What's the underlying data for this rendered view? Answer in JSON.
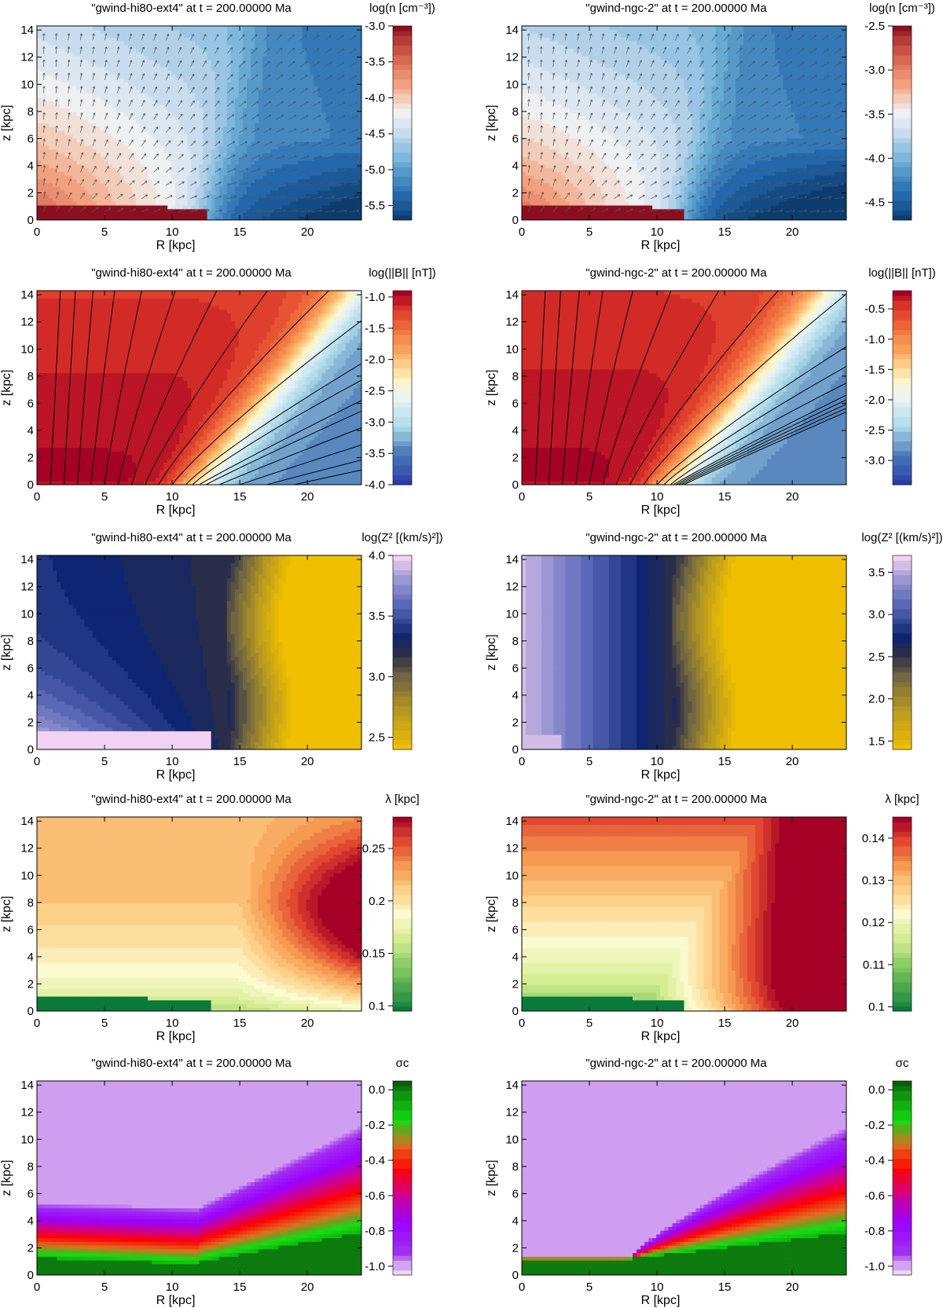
{
  "figure": {
    "description": "Grid of 10 contour plots of galactic wind simulations in the R-z plane (5 quantities x 2 models)",
    "xlabel": "R [kpc]",
    "ylabel": "z [kpc]"
  },
  "chart_data": [
    {
      "type": "heatmap",
      "row": 0,
      "col": 0,
      "title": "\"gwind-hi80-ext4\" at t = 200.00000 Ma",
      "xlabel": "R [kpc]",
      "ylabel": "z [kpc]",
      "xlim": [
        0,
        24
      ],
      "ylim": [
        0,
        14.3
      ],
      "xticks": [
        0,
        5,
        10,
        15,
        20
      ],
      "yticks": [
        0,
        2,
        4,
        6,
        8,
        10,
        12,
        14
      ],
      "colorbar": {
        "title": "log(n [cm⁻³])",
        "min": -5.7,
        "max": -3.0,
        "ticks": [
          -3.0,
          -3.5,
          -4.0,
          -4.5,
          -5.0,
          -5.5
        ],
        "palette": "red-white-blue"
      },
      "field": {
        "kind": "density",
        "hi": -3.0,
        "lo": -5.7,
        "mid_ratio": 0.62,
        "r0": 12.5,
        "levels": 24
      },
      "overlay": {
        "kind": "velocity-arrows",
        "count_x": 26,
        "count_z": 14
      }
    },
    {
      "type": "heatmap",
      "row": 0,
      "col": 1,
      "title": "\"gwind-ngc-2\" at t = 200.00000 Ma",
      "xlabel": "R [kpc]",
      "ylabel": "z [kpc]",
      "xlim": [
        0,
        24
      ],
      "ylim": [
        0,
        14.3
      ],
      "xticks": [
        0,
        5,
        10,
        15,
        20
      ],
      "yticks": [
        0,
        2,
        4,
        6,
        8,
        10,
        12,
        14
      ],
      "colorbar": {
        "title": "log(n [cm⁻³])",
        "min": -4.7,
        "max": -2.5,
        "ticks": [
          -2.5,
          -3.0,
          -3.5,
          -4.0,
          -4.5
        ],
        "palette": "red-white-blue"
      },
      "field": {
        "kind": "density",
        "hi": -2.5,
        "lo": -4.7,
        "mid_ratio": 0.5,
        "r0": 12.0,
        "levels": 24
      },
      "overlay": {
        "kind": "velocity-arrows",
        "count_x": 26,
        "count_z": 14
      }
    },
    {
      "type": "heatmap",
      "row": 1,
      "col": 0,
      "title": "\"gwind-hi80-ext4\" at t = 200.00000 Ma",
      "xlabel": "R [kpc]",
      "ylabel": "z [kpc]",
      "xlim": [
        0,
        24
      ],
      "ylim": [
        0,
        14.3
      ],
      "xticks": [
        0,
        5,
        10,
        15,
        20
      ],
      "yticks": [
        0,
        2,
        4,
        6,
        8,
        10,
        12,
        14
      ],
      "colorbar": {
        "title": "log(||B|| [nT])",
        "min": -4.0,
        "max": -0.9,
        "ticks": [
          -1.0,
          -1.5,
          -2.0,
          -2.5,
          -3.0,
          -3.5,
          -4.0
        ],
        "palette": "red-yellow-blue"
      },
      "field": {
        "kind": "bfield",
        "r0": 12.0,
        "levels": 28
      },
      "overlay": {
        "kind": "field-lines",
        "footpoints": [
          1,
          2,
          3,
          4,
          5,
          6,
          7,
          8,
          9,
          10,
          11,
          11.5,
          12,
          12.5,
          13.5,
          15,
          17,
          19
        ]
      }
    },
    {
      "type": "heatmap",
      "row": 1,
      "col": 1,
      "title": "\"gwind-ngc-2\" at t = 200.00000 Ma",
      "xlabel": "R [kpc]",
      "ylabel": "z [kpc]",
      "xlim": [
        0,
        24
      ],
      "ylim": [
        0,
        14.3
      ],
      "xticks": [
        0,
        5,
        10,
        15,
        20
      ],
      "yticks": [
        0,
        2,
        4,
        6,
        8,
        10,
        12,
        14
      ],
      "colorbar": {
        "title": "log(||B|| [nT])",
        "min": -3.4,
        "max": -0.2,
        "ticks": [
          -0.5,
          -1.0,
          -1.5,
          -2.0,
          -2.5,
          -3.0
        ],
        "palette": "red-yellow-blue"
      },
      "field": {
        "kind": "bfield",
        "r0": 11.2,
        "levels": 28
      },
      "overlay": {
        "kind": "field-lines",
        "footpoints": [
          1,
          2,
          3,
          4,
          5,
          6,
          7,
          8,
          9,
          10,
          10.5,
          11,
          11.2,
          11.4,
          11.6,
          11.8,
          12
        ]
      }
    },
    {
      "type": "heatmap",
      "row": 2,
      "col": 0,
      "title": "\"gwind-hi80-ext4\" at t = 200.00000 Ma",
      "xlabel": "R [kpc]",
      "ylabel": "z [kpc]",
      "xlim": [
        0,
        24
      ],
      "ylim": [
        0,
        14.3
      ],
      "xticks": [
        0,
        5,
        10,
        15,
        20
      ],
      "yticks": [
        0,
        2,
        4,
        6,
        8,
        10,
        12,
        14
      ],
      "colorbar": {
        "title": "log(Z² [(km/s)²])",
        "min": 2.4,
        "max": 4.0,
        "ticks": [
          4.0,
          3.5,
          3.0,
          2.5
        ],
        "palette": "purple-blue-yellow"
      },
      "field": {
        "kind": "z2",
        "r0": 14.0,
        "core_hi": true,
        "levels": 24
      }
    },
    {
      "type": "heatmap",
      "row": 2,
      "col": 1,
      "title": "\"gwind-ngc-2\" at t = 200.00000 Ma",
      "xlabel": "R [kpc]",
      "ylabel": "z [kpc]",
      "xlim": [
        0,
        24
      ],
      "ylim": [
        0,
        14.3
      ],
      "xticks": [
        0,
        5,
        10,
        15,
        20
      ],
      "yticks": [
        0,
        2,
        4,
        6,
        8,
        10,
        12,
        14
      ],
      "colorbar": {
        "title": "log(Z² [(km/s)²])",
        "min": 1.4,
        "max": 3.7,
        "ticks": [
          3.5,
          3.0,
          2.5,
          2.0,
          1.5
        ],
        "palette": "purple-blue-yellow"
      },
      "field": {
        "kind": "z2",
        "r0": 11.0,
        "core_hi": false,
        "levels": 24
      }
    },
    {
      "type": "heatmap",
      "row": 3,
      "col": 0,
      "title": "\"gwind-hi80-ext4\" at t = 200.00000 Ma",
      "xlabel": "R [kpc]",
      "ylabel": "z [kpc]",
      "xlim": [
        0,
        24
      ],
      "ylim": [
        0,
        14.3
      ],
      "xticks": [
        0,
        5,
        10,
        15,
        20
      ],
      "yticks": [
        0,
        2,
        4,
        6,
        8,
        10,
        12,
        14
      ],
      "colorbar": {
        "title": "λ [kpc]",
        "min": 0.095,
        "max": 0.28,
        "ticks": [
          0.25,
          0.2,
          0.15,
          0.1
        ],
        "palette": "green-yellow-red"
      },
      "field": {
        "kind": "lambda",
        "r0": 13.0,
        "variant": "a",
        "levels": 24
      }
    },
    {
      "type": "heatmap",
      "row": 3,
      "col": 1,
      "title": "\"gwind-ngc-2\" at t = 200.00000 Ma",
      "xlabel": "R [kpc]",
      "ylabel": "z [kpc]",
      "xlim": [
        0,
        24
      ],
      "ylim": [
        0,
        14.3
      ],
      "xticks": [
        0,
        5,
        10,
        15,
        20
      ],
      "yticks": [
        0,
        2,
        4,
        6,
        8,
        10,
        12,
        14
      ],
      "colorbar": {
        "title": "λ [kpc]",
        "min": 0.099,
        "max": 0.145,
        "ticks": [
          0.14,
          0.13,
          0.12,
          0.11,
          0.1
        ],
        "palette": "green-yellow-red"
      },
      "field": {
        "kind": "lambda",
        "r0": 12.0,
        "variant": "b",
        "levels": 24
      }
    },
    {
      "type": "heatmap",
      "row": 4,
      "col": 0,
      "title": "\"gwind-hi80-ext4\" at t = 200.00000 Ma",
      "xlabel": "R [kpc]",
      "ylabel": "z [kpc]",
      "xlim": [
        0,
        24
      ],
      "ylim": [
        0,
        14.3
      ],
      "xticks": [
        0,
        5,
        10,
        15,
        20
      ],
      "yticks": [
        0,
        2,
        4,
        6,
        8,
        10,
        12,
        14
      ],
      "colorbar": {
        "title": "σc",
        "min": -1.05,
        "max": 0.05,
        "ticks": [
          0.0,
          -0.2,
          -0.4,
          -0.6,
          -0.8,
          -1.0
        ],
        "palette": "sigma"
      },
      "field": {
        "kind": "sigma",
        "variant": "a"
      }
    },
    {
      "type": "heatmap",
      "row": 4,
      "col": 1,
      "title": "\"gwind-ngc-2\" at t = 200.00000 Ma",
      "xlabel": "R [kpc]",
      "ylabel": "z [kpc]",
      "xlim": [
        0,
        24
      ],
      "ylim": [
        0,
        14.3
      ],
      "xticks": [
        0,
        5,
        10,
        15,
        20
      ],
      "yticks": [
        0,
        2,
        4,
        6,
        8,
        10,
        12,
        14
      ],
      "colorbar": {
        "title": "σc",
        "min": -1.05,
        "max": 0.05,
        "ticks": [
          0.0,
          -0.2,
          -0.4,
          -0.6,
          -0.8,
          -1.0
        ],
        "palette": "sigma"
      },
      "field": {
        "kind": "sigma",
        "variant": "b"
      }
    }
  ]
}
